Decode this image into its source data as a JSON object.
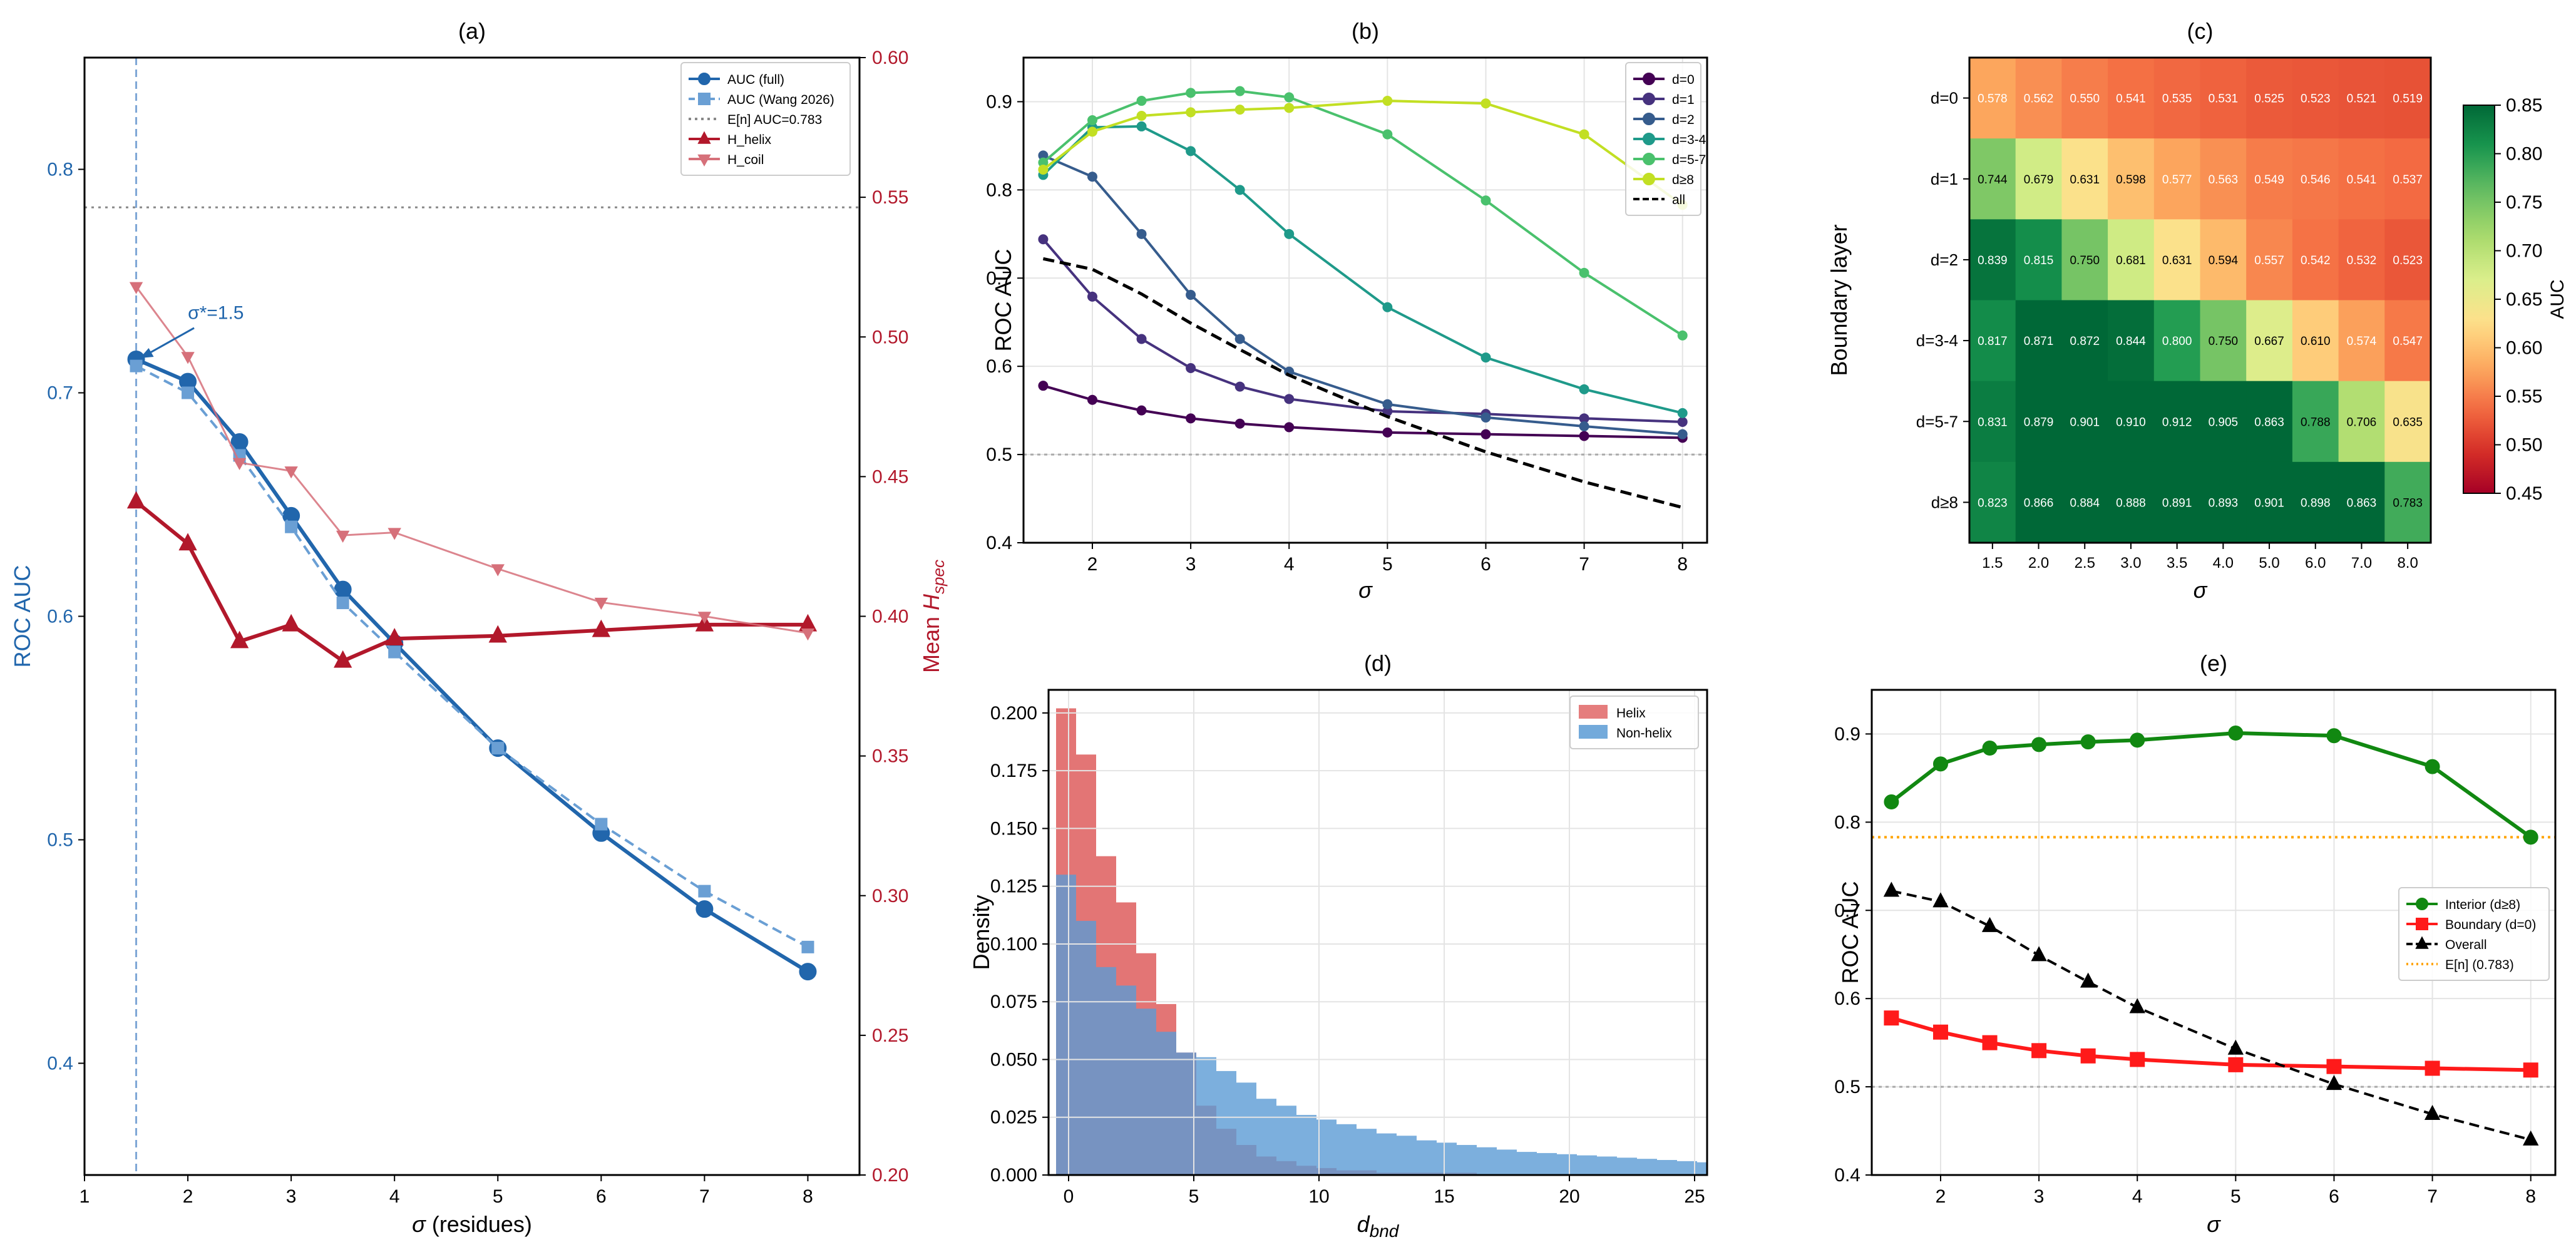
{
  "chart_data": [
    {
      "id": "a",
      "type": "line",
      "title": "(a)",
      "xlabel": "σ (residues)",
      "ylabel": "ROC AUC",
      "y2label": "Mean H_spec",
      "xlim": [
        1,
        8.5
      ],
      "ylim": [
        0.35,
        0.85
      ],
      "y2lim": [
        0.2,
        0.6
      ],
      "xticks": [
        1,
        2,
        3,
        4,
        5,
        6,
        7,
        8
      ],
      "yticks": [
        0.4,
        0.5,
        0.6,
        0.7,
        0.8
      ],
      "y2ticks": [
        0.2,
        0.25,
        0.3,
        0.35,
        0.4,
        0.45,
        0.5,
        0.55,
        0.6
      ],
      "x": [
        1.5,
        2.0,
        2.5,
        3.0,
        3.5,
        4.0,
        5.0,
        6.0,
        7.0,
        8.0
      ],
      "series": [
        {
          "name": "AUC (full)",
          "axis": "left",
          "color": "#2166ac",
          "values": [
            0.715,
            0.705,
            0.678,
            0.645,
            0.612,
            0.588,
            0.541,
            0.503,
            0.469,
            0.441
          ]
        },
        {
          "name": "AUC (Wang 2026)",
          "axis": "left",
          "color": "#6a9fd4",
          "values": [
            0.712,
            0.7,
            0.672,
            0.64,
            0.606,
            0.584,
            0.541,
            0.507,
            0.477,
            0.452
          ]
        },
        {
          "name": "H_helix",
          "axis": "right",
          "color": "#b2182b",
          "values": [
            0.441,
            0.426,
            0.391,
            0.397,
            0.384,
            0.392,
            0.393,
            0.395,
            0.397,
            0.397
          ]
        },
        {
          "name": "H_coil",
          "axis": "right",
          "color": "#d6707a",
          "values": [
            0.518,
            0.493,
            0.455,
            0.452,
            0.429,
            0.43,
            0.417,
            0.405,
            0.4,
            0.394
          ]
        }
      ],
      "reference_line": {
        "label": "E[n] AUC=0.783",
        "y": 0.783
      },
      "vline_x": 1.5,
      "annotation": "σ*=1.5"
    },
    {
      "id": "b",
      "type": "line",
      "title": "(b)",
      "xlabel": "σ",
      "ylabel": "ROC AUC",
      "xlim": [
        1.3,
        8.25
      ],
      "ylim": [
        0.4,
        0.95
      ],
      "xticks": [
        2,
        3,
        4,
        5,
        6,
        7,
        8
      ],
      "yticks": [
        0.4,
        0.5,
        0.6,
        0.7,
        0.8,
        0.9
      ],
      "x": [
        1.5,
        2.0,
        2.5,
        3.0,
        3.5,
        4.0,
        5.0,
        6.0,
        7.0,
        8.0
      ],
      "series": [
        {
          "name": "d=0",
          "color": "#440154",
          "values": [
            0.578,
            0.562,
            0.55,
            0.541,
            0.535,
            0.531,
            0.525,
            0.523,
            0.521,
            0.519
          ]
        },
        {
          "name": "d=1",
          "color": "#46327e",
          "values": [
            0.744,
            0.679,
            0.631,
            0.598,
            0.577,
            0.563,
            0.549,
            0.546,
            0.541,
            0.537
          ]
        },
        {
          "name": "d=2",
          "color": "#365c8d",
          "values": [
            0.839,
            0.815,
            0.75,
            0.681,
            0.631,
            0.594,
            0.557,
            0.542,
            0.532,
            0.523
          ]
        },
        {
          "name": "d=3-4",
          "color": "#1f9a8a",
          "values": [
            0.817,
            0.871,
            0.872,
            0.844,
            0.8,
            0.75,
            0.667,
            0.61,
            0.574,
            0.547
          ]
        },
        {
          "name": "d=5-7",
          "color": "#4ac16d",
          "values": [
            0.831,
            0.879,
            0.901,
            0.91,
            0.912,
            0.905,
            0.863,
            0.788,
            0.706,
            0.635
          ]
        },
        {
          "name": "d≥8",
          "color": "#c2df23",
          "values": [
            0.823,
            0.866,
            0.884,
            0.888,
            0.891,
            0.893,
            0.901,
            0.898,
            0.863,
            0.783
          ]
        },
        {
          "name": "all",
          "color": "#000000",
          "dashed": true,
          "values": [
            0.722,
            0.71,
            0.682,
            0.649,
            0.619,
            0.59,
            0.543,
            0.503,
            0.469,
            0.44
          ]
        }
      ],
      "reference_y": 0.5
    },
    {
      "id": "c",
      "type": "heatmap",
      "title": "(c)",
      "xlabel": "σ",
      "ylabel": "Boundary layer",
      "colorbar_label": "AUC",
      "vmin": 0.45,
      "vmax": 0.85,
      "colorbar_ticks": [
        0.45,
        0.5,
        0.55,
        0.6,
        0.65,
        0.7,
        0.75,
        0.8,
        0.85
      ],
      "columns": [
        "1.5",
        "2.0",
        "2.5",
        "3.0",
        "3.5",
        "4.0",
        "5.0",
        "6.0",
        "7.0",
        "8.0"
      ],
      "rows": [
        "d=0",
        "d=1",
        "d=2",
        "d=3-4",
        "d=5-7",
        "d≥8"
      ],
      "values": [
        [
          0.578,
          0.562,
          0.55,
          0.541,
          0.535,
          0.531,
          0.525,
          0.523,
          0.521,
          0.519
        ],
        [
          0.744,
          0.679,
          0.631,
          0.598,
          0.577,
          0.563,
          0.549,
          0.546,
          0.541,
          0.537
        ],
        [
          0.839,
          0.815,
          0.75,
          0.681,
          0.631,
          0.594,
          0.557,
          0.542,
          0.532,
          0.523
        ],
        [
          0.817,
          0.871,
          0.872,
          0.844,
          0.8,
          0.75,
          0.667,
          0.61,
          0.574,
          0.547
        ],
        [
          0.831,
          0.879,
          0.901,
          0.91,
          0.912,
          0.905,
          0.863,
          0.788,
          0.706,
          0.635
        ],
        [
          0.823,
          0.866,
          0.884,
          0.888,
          0.891,
          0.893,
          0.901,
          0.898,
          0.863,
          0.783
        ]
      ]
    },
    {
      "id": "d",
      "type": "histogram",
      "title": "(d)",
      "xlabel": "d_bnd",
      "ylabel": "Density",
      "xlim": [
        -0.8,
        25.5
      ],
      "ylim": [
        0,
        0.21
      ],
      "xticks": [
        0,
        5,
        10,
        15,
        20,
        25
      ],
      "yticks": [
        0.0,
        0.025,
        0.05,
        0.075,
        0.1,
        0.125,
        0.15,
        0.175,
        0.2
      ],
      "bin_start": -0.5,
      "bin_width": 0.8,
      "series": [
        {
          "name": "Helix",
          "color": "#e06666",
          "values": [
            0.202,
            0.182,
            0.138,
            0.118,
            0.096,
            0.074,
            0.053,
            0.03,
            0.02,
            0.013,
            0.008,
            0.006,
            0.004,
            0.003,
            0.002,
            0.002,
            0.001,
            0.001,
            0.001,
            0.001,
            0.001,
            0.0,
            0.0,
            0.0,
            0.0,
            0.0,
            0.0,
            0.0,
            0.0,
            0.0,
            0.0,
            0.0,
            0.0
          ]
        },
        {
          "name": "Non-helix",
          "color": "#5b9bd5",
          "values": [
            0.13,
            0.11,
            0.09,
            0.082,
            0.072,
            0.062,
            0.053,
            0.051,
            0.045,
            0.04,
            0.033,
            0.03,
            0.026,
            0.024,
            0.022,
            0.02,
            0.018,
            0.017,
            0.015,
            0.014,
            0.013,
            0.012,
            0.011,
            0.01,
            0.0095,
            0.009,
            0.0085,
            0.008,
            0.0075,
            0.007,
            0.0065,
            0.006,
            0.0055
          ]
        }
      ]
    },
    {
      "id": "e",
      "type": "line",
      "title": "(e)",
      "xlabel": "σ",
      "ylabel": "ROC AUC",
      "xlim": [
        1.3,
        8.25
      ],
      "ylim": [
        0.4,
        0.95
      ],
      "xticks": [
        2,
        3,
        4,
        5,
        6,
        7,
        8
      ],
      "yticks": [
        0.4,
        0.5,
        0.6,
        0.7,
        0.8,
        0.9
      ],
      "x": [
        1.5,
        2.0,
        2.5,
        3.0,
        3.5,
        4.0,
        5.0,
        6.0,
        7.0,
        8.0
      ],
      "series": [
        {
          "name": "Interior (d≥8)",
          "color": "#118811",
          "marker": "circle",
          "values": [
            0.823,
            0.866,
            0.884,
            0.888,
            0.891,
            0.893,
            0.901,
            0.898,
            0.863,
            0.783
          ]
        },
        {
          "name": "Boundary (d=0)",
          "color": "#ff1a1a",
          "marker": "square",
          "values": [
            0.578,
            0.562,
            0.55,
            0.541,
            0.535,
            0.531,
            0.525,
            0.523,
            0.521,
            0.519
          ]
        },
        {
          "name": "Overall",
          "color": "#000000",
          "marker": "triangle",
          "dashed": true,
          "values": [
            0.722,
            0.71,
            0.682,
            0.649,
            0.619,
            0.59,
            0.543,
            0.503,
            0.469,
            0.44
          ]
        }
      ],
      "reference_line": {
        "label": "E[n] (0.783)",
        "y": 0.783,
        "color": "#ffa500"
      },
      "reference_y": 0.5
    }
  ]
}
